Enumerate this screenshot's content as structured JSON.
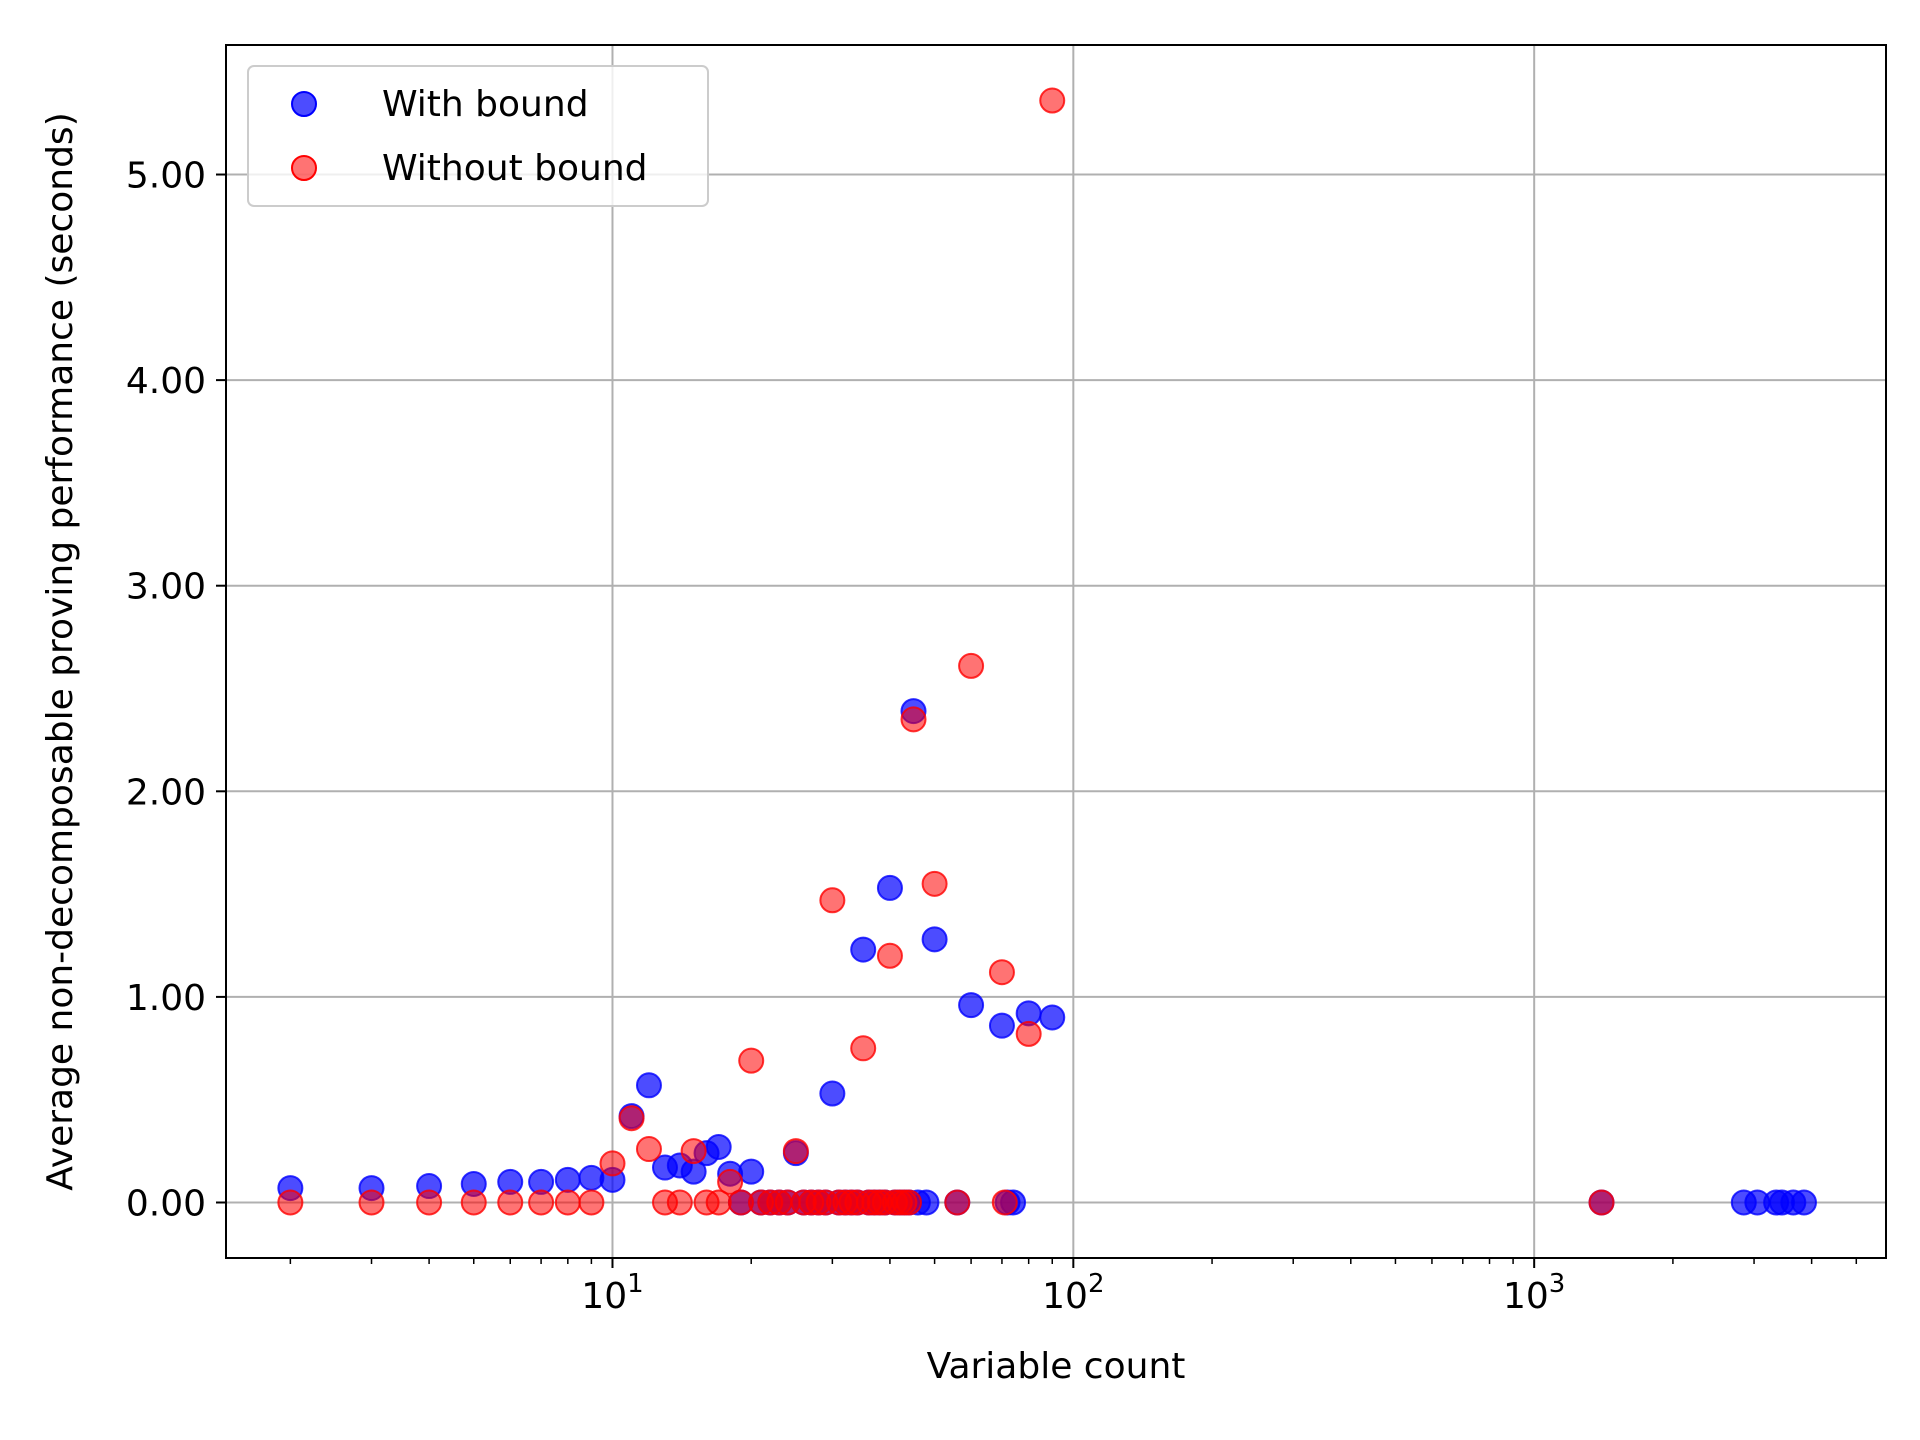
{
  "chart_data": {
    "type": "scatter",
    "title": "",
    "xlabel": "Variable count",
    "ylabel": "Average non-decomposable proving performance (seconds)",
    "x_scale": "log",
    "xlim": [
      1.45,
      5800
    ],
    "ylim": [
      -0.27,
      5.63
    ],
    "x_ticks": [
      {
        "value": 10,
        "base": "10",
        "exp": "1"
      },
      {
        "value": 100,
        "base": "10",
        "exp": "2"
      },
      {
        "value": 1000,
        "base": "10",
        "exp": "3"
      }
    ],
    "y_ticks": [
      {
        "value": 0,
        "label": "0.00"
      },
      {
        "value": 1,
        "label": "1.00"
      },
      {
        "value": 2,
        "label": "2.00"
      },
      {
        "value": 3,
        "label": "3.00"
      },
      {
        "value": 4,
        "label": "4.00"
      },
      {
        "value": 5,
        "label": "5.00"
      }
    ],
    "grid": true,
    "legend_position": "top-left",
    "series": [
      {
        "name": "With bound",
        "color": "#0000ff",
        "points": [
          [
            2,
            0.07
          ],
          [
            3,
            0.07
          ],
          [
            4,
            0.08
          ],
          [
            5,
            0.09
          ],
          [
            6,
            0.1
          ],
          [
            7,
            0.1
          ],
          [
            8,
            0.11
          ],
          [
            9,
            0.12
          ],
          [
            10,
            0.11
          ],
          [
            11,
            0.42
          ],
          [
            12,
            0.57
          ],
          [
            13,
            0.17
          ],
          [
            14,
            0.18
          ],
          [
            15,
            0.15
          ],
          [
            16,
            0.24
          ],
          [
            17,
            0.27
          ],
          [
            18,
            0.14
          ],
          [
            19,
            0.0
          ],
          [
            20,
            0.15
          ],
          [
            21,
            0.0
          ],
          [
            22,
            0.0
          ],
          [
            23,
            0.0
          ],
          [
            24,
            0.0
          ],
          [
            25,
            0.24
          ],
          [
            26,
            0.0
          ],
          [
            27,
            0.0
          ],
          [
            28,
            0.0
          ],
          [
            29,
            0.0
          ],
          [
            30,
            0.53
          ],
          [
            31,
            0.0
          ],
          [
            32,
            0.0
          ],
          [
            33,
            0.0
          ],
          [
            34,
            0.0
          ],
          [
            35,
            1.23
          ],
          [
            36,
            0.0
          ],
          [
            37,
            0.0
          ],
          [
            38,
            0.0
          ],
          [
            39,
            0.0
          ],
          [
            40,
            1.53
          ],
          [
            41,
            0.0
          ],
          [
            42,
            0.0
          ],
          [
            43,
            0.0
          ],
          [
            44,
            0.0
          ],
          [
            45,
            2.39
          ],
          [
            46,
            0.0
          ],
          [
            48,
            0.0
          ],
          [
            50,
            1.28
          ],
          [
            56,
            0.0
          ],
          [
            60,
            0.96
          ],
          [
            70,
            0.86
          ],
          [
            72,
            0.0
          ],
          [
            74,
            0.0
          ],
          [
            80,
            0.92
          ],
          [
            90,
            0.9
          ],
          [
            1400,
            0.0
          ],
          [
            2850,
            0.0
          ],
          [
            3050,
            0.0
          ],
          [
            3350,
            0.0
          ],
          [
            3450,
            0.0
          ],
          [
            3650,
            0.0
          ],
          [
            3850,
            0.0
          ]
        ]
      },
      {
        "name": "Without bound",
        "color": "#ff0000",
        "points": [
          [
            2,
            0.0
          ],
          [
            3,
            0.0
          ],
          [
            4,
            0.0
          ],
          [
            5,
            0.0
          ],
          [
            6,
            0.0
          ],
          [
            7,
            0.0
          ],
          [
            8,
            0.0
          ],
          [
            9,
            0.0
          ],
          [
            10,
            0.19
          ],
          [
            11,
            0.41
          ],
          [
            12,
            0.26
          ],
          [
            13,
            0.0
          ],
          [
            14,
            0.0
          ],
          [
            15,
            0.25
          ],
          [
            16,
            0.0
          ],
          [
            17,
            0.0
          ],
          [
            18,
            0.1
          ],
          [
            19,
            0.0
          ],
          [
            20,
            0.69
          ],
          [
            21,
            0.0
          ],
          [
            22,
            0.0
          ],
          [
            23,
            0.0
          ],
          [
            24,
            0.0
          ],
          [
            25,
            0.25
          ],
          [
            26,
            0.0
          ],
          [
            27,
            0.0
          ],
          [
            28,
            0.0
          ],
          [
            29,
            0.0
          ],
          [
            30,
            1.47
          ],
          [
            31,
            0.0
          ],
          [
            32,
            0.0
          ],
          [
            33,
            0.0
          ],
          [
            34,
            0.0
          ],
          [
            35,
            0.75
          ],
          [
            36,
            0.0
          ],
          [
            37,
            0.0
          ],
          [
            38,
            0.0
          ],
          [
            39,
            0.0
          ],
          [
            40,
            1.2
          ],
          [
            41,
            0.0
          ],
          [
            42,
            0.0
          ],
          [
            43,
            0.0
          ],
          [
            44,
            0.0
          ],
          [
            45,
            2.35
          ],
          [
            50,
            1.55
          ],
          [
            56,
            0.0
          ],
          [
            60,
            2.61
          ],
          [
            70,
            1.12
          ],
          [
            71,
            0.0
          ],
          [
            80,
            0.82
          ],
          [
            90,
            5.36
          ],
          [
            1400,
            0.0
          ]
        ]
      }
    ]
  }
}
